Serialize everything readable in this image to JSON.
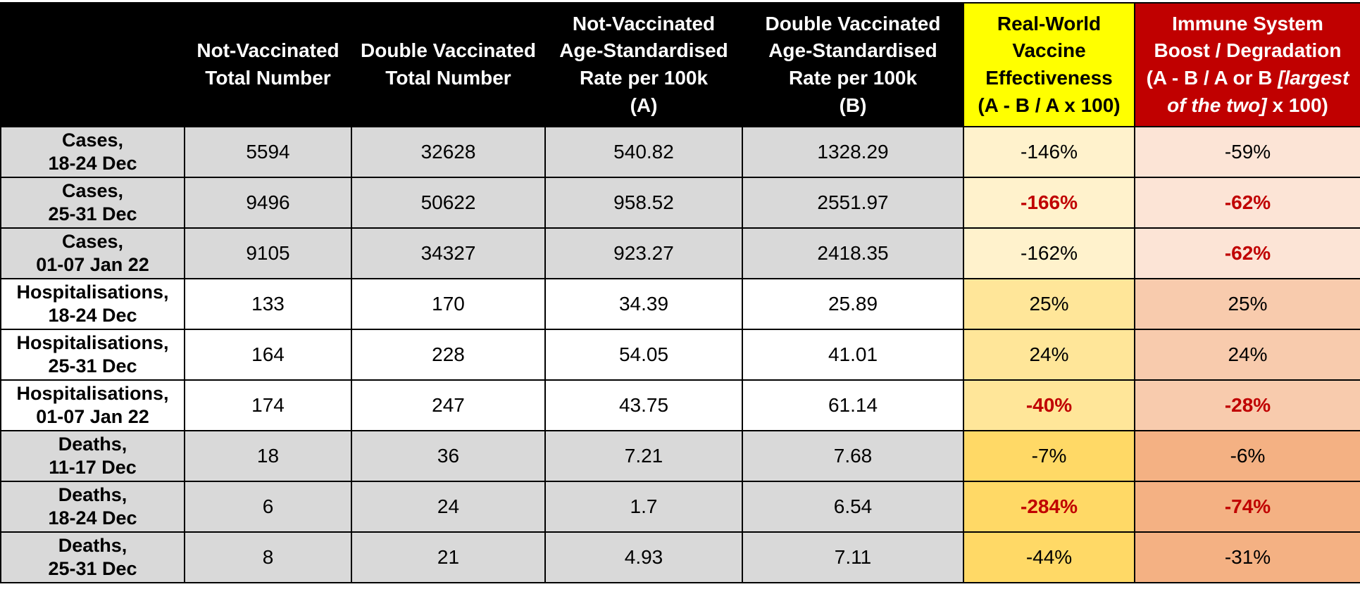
{
  "chart_data": {
    "type": "table",
    "header": {
      "corner": "",
      "col2": {
        "line1": "Not-Vaccinated",
        "line2": "Total Number"
      },
      "col3": {
        "line1": "Double Vaccinated",
        "line2": "Total Number"
      },
      "col4": {
        "line1": "Not-Vaccinated",
        "line2": "Age-Standardised",
        "line3": "Rate per 100k",
        "line4": "(A)"
      },
      "col5": {
        "line1": "Double Vaccinated",
        "line2": "Age-Standardised",
        "line3": "Rate per 100k",
        "line4": "(B)"
      },
      "col6": {
        "line1": "Real-World",
        "line2": "Vaccine",
        "line3": "Effectiveness",
        "line4": "(A - B / A x 100)"
      },
      "col7": {
        "line1": "Immune System",
        "line2": "Boost / Degradation",
        "line3_normal": "(A - B / A or B ",
        "line3_italic": "[largest",
        "line4_italic": "of the two]",
        "line4_normal": " x 100)"
      }
    },
    "rows": [
      {
        "label1": "Cases,",
        "label2": "18-24 Dec",
        "not_vaccinated_total": "5594",
        "double_vaccinated_total": "32628",
        "rate_a": "540.82",
        "rate_b": "1328.29",
        "effectiveness": "-146%",
        "boost": "-59%",
        "effectiveness_highlighted": false,
        "boost_highlighted": false
      },
      {
        "label1": "Cases,",
        "label2": "25-31 Dec",
        "not_vaccinated_total": "9496",
        "double_vaccinated_total": "50622",
        "rate_a": "958.52",
        "rate_b": "2551.97",
        "effectiveness": "-166%",
        "boost": "-62%",
        "effectiveness_highlighted": true,
        "boost_highlighted": true
      },
      {
        "label1": "Cases,",
        "label2": "01-07 Jan 22",
        "not_vaccinated_total": "9105",
        "double_vaccinated_total": "34327",
        "rate_a": "923.27",
        "rate_b": "2418.35",
        "effectiveness": "-162%",
        "boost": "-62%",
        "effectiveness_highlighted": false,
        "boost_highlighted": true
      },
      {
        "label1": "Hospitalisations,",
        "label2": "18-24 Dec",
        "not_vaccinated_total": "133",
        "double_vaccinated_total": "170",
        "rate_a": "34.39",
        "rate_b": "25.89",
        "effectiveness": "25%",
        "boost": "25%",
        "effectiveness_highlighted": false,
        "boost_highlighted": false
      },
      {
        "label1": "Hospitalisations,",
        "label2": "25-31 Dec",
        "not_vaccinated_total": "164",
        "double_vaccinated_total": "228",
        "rate_a": "54.05",
        "rate_b": "41.01",
        "effectiveness": "24%",
        "boost": "24%",
        "effectiveness_highlighted": false,
        "boost_highlighted": false
      },
      {
        "label1": "Hospitalisations,",
        "label2": "01-07 Jan 22",
        "not_vaccinated_total": "174",
        "double_vaccinated_total": "247",
        "rate_a": "43.75",
        "rate_b": "61.14",
        "effectiveness": "-40%",
        "boost": "-28%",
        "effectiveness_highlighted": true,
        "boost_highlighted": true
      },
      {
        "label1": "Deaths,",
        "label2": "11-17 Dec",
        "not_vaccinated_total": "18",
        "double_vaccinated_total": "36",
        "rate_a": "7.21",
        "rate_b": "7.68",
        "effectiveness": "-7%",
        "boost": "-6%",
        "effectiveness_highlighted": false,
        "boost_highlighted": false
      },
      {
        "label1": "Deaths,",
        "label2": "18-24 Dec",
        "not_vaccinated_total": "6",
        "double_vaccinated_total": "24",
        "rate_a": "1.7",
        "rate_b": "6.54",
        "effectiveness": "-284%",
        "boost": "-74%",
        "effectiveness_highlighted": true,
        "boost_highlighted": true
      },
      {
        "label1": "Deaths,",
        "label2": "25-31 Dec",
        "not_vaccinated_total": "8",
        "double_vaccinated_total": "21",
        "rate_a": "4.93",
        "rate_b": "7.11",
        "effectiveness": "-44%",
        "boost": "-31%",
        "effectiveness_highlighted": false,
        "boost_highlighted": false
      }
    ],
    "colors": {
      "header_black_bg": "#000000",
      "header_yellow_bg": "#FFFF00",
      "header_red_bg": "#C00000",
      "row_gray_bg": "#D9D9D9",
      "row_white_bg": "#FFFFFF",
      "effectiveness_cases_bg": "#FFF2CC",
      "effectiveness_hospitalisations_bg": "#FFE699",
      "effectiveness_deaths_bg": "#FFD966",
      "boost_cases_bg": "#FCE4D6",
      "boost_hospitalisations_bg": "#F8CBAD",
      "boost_deaths_bg": "#F4B183",
      "highlight_text": "#C00000"
    }
  }
}
